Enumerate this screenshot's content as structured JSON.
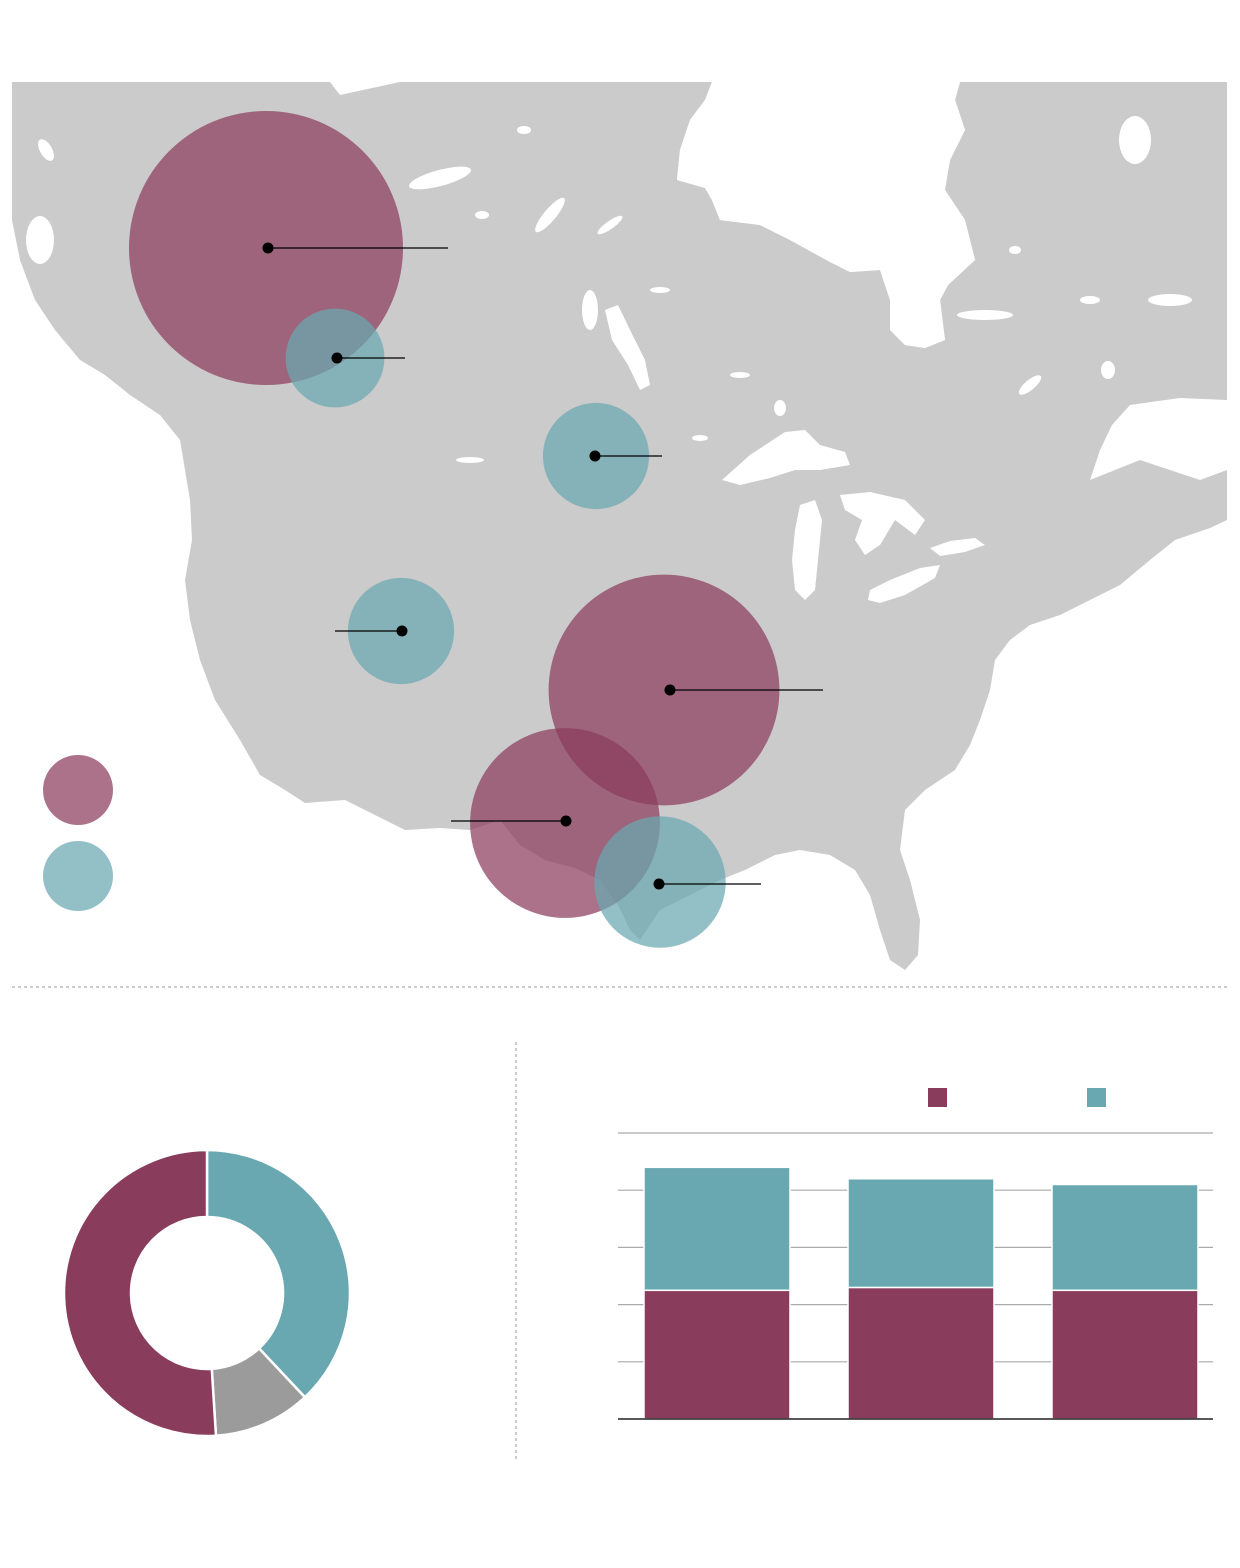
{
  "colors": {
    "land": "#cbcbcb",
    "water": "#ffffff",
    "maroon": "#8a3c5d",
    "teal": "#6aa8b1",
    "grey_slice": "#9b9b9b",
    "leader": "#000000",
    "divider": "#9a9a9a"
  },
  "map": {
    "bubbles": [
      {
        "series": "maroon",
        "value": 100,
        "label": ""
      },
      {
        "series": "teal",
        "value": 13,
        "label": ""
      },
      {
        "series": "teal",
        "value": 15,
        "label": ""
      },
      {
        "series": "teal",
        "value": 15,
        "label": ""
      },
      {
        "series": "maroon",
        "value": 71,
        "label": ""
      },
      {
        "series": "maroon",
        "value": 48,
        "label": ""
      },
      {
        "series": "teal",
        "value": 23,
        "label": ""
      }
    ],
    "legend": [
      {
        "series": "maroon",
        "label": ""
      },
      {
        "series": "teal",
        "label": ""
      }
    ]
  },
  "chart_data": [
    {
      "type": "pie",
      "title": "",
      "slices": [
        {
          "color": "teal",
          "value": 38
        },
        {
          "color": "grey",
          "value": 11
        },
        {
          "color": "maroon",
          "value": 51
        }
      ]
    },
    {
      "type": "bar",
      "stacked": true,
      "title": "",
      "categories": [
        "",
        "",
        ""
      ],
      "series": [
        {
          "color": "maroon",
          "values": [
            2.25,
            2.3,
            2.25
          ]
        },
        {
          "color": "teal",
          "values": [
            2.15,
            1.9,
            1.85
          ]
        }
      ],
      "ylim": [
        0,
        5
      ],
      "grid": true,
      "legend": "top-right"
    }
  ]
}
